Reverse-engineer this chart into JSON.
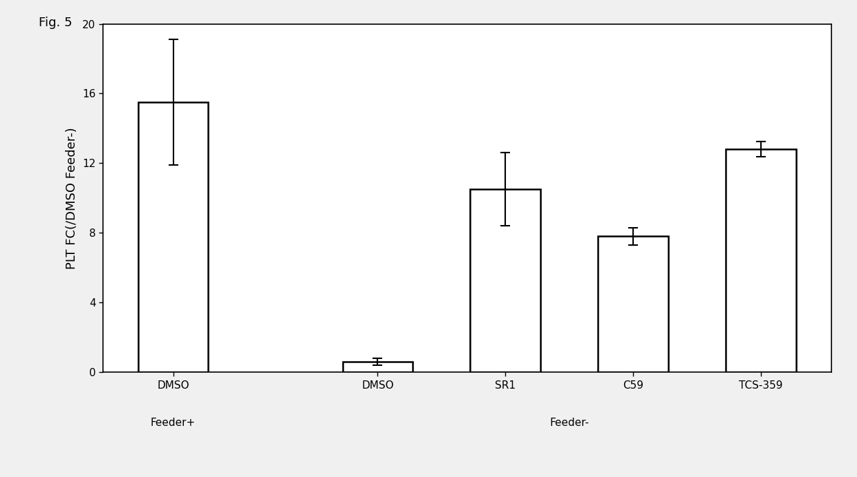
{
  "categories": [
    "DMSO",
    "DMSO",
    "SR1",
    "C59",
    "TCS-359"
  ],
  "values": [
    15.5,
    0.6,
    10.5,
    7.8,
    12.8
  ],
  "errors_up": [
    3.6,
    0.2,
    2.1,
    0.5,
    0.45
  ],
  "errors_down": [
    3.6,
    0.2,
    2.1,
    0.5,
    0.45
  ],
  "bar_color": "white",
  "bar_edgecolor": "black",
  "bar_linewidth": 1.8,
  "ylabel": "PLT FC(/DMSO Feeder-)",
  "ylim": [
    0,
    20
  ],
  "yticks": [
    0,
    4,
    8,
    12,
    16,
    20
  ],
  "group1_label": "Feeder+",
  "group2_label": "Feeder-",
  "figure_label": "Fig. 5",
  "background_color": "#f0f0f0",
  "plot_background_color": "white",
  "error_capsize": 5,
  "error_linewidth": 1.5,
  "bar_width": 0.55,
  "x_positions": [
    0,
    1.6,
    2.6,
    3.6,
    4.6
  ],
  "ylabel_fontsize": 13,
  "tick_fontsize": 11,
  "group_label_fontsize": 11,
  "fig_label_fontsize": 13
}
